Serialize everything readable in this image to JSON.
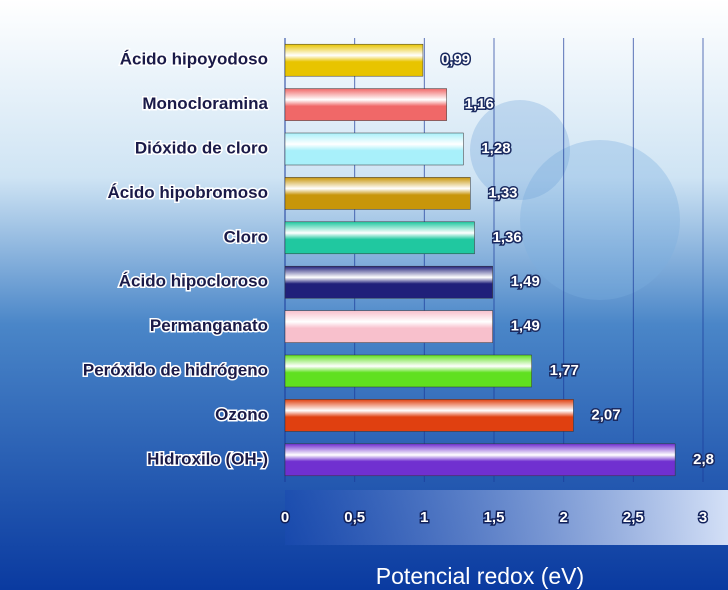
{
  "chart_data": {
    "type": "bar",
    "orientation": "horizontal",
    "categories": [
      "Ácido hipoyodoso",
      "Monocloramina",
      "Dióxido de cloro",
      "Ácido hipobromoso",
      "Cloro",
      "Ácido hipocloroso",
      "Permanganato",
      "Peróxido de hidrógeno",
      "Ozono",
      "Hidroxilo (OH-)"
    ],
    "values": [
      0.99,
      1.16,
      1.28,
      1.33,
      1.36,
      1.49,
      1.49,
      1.77,
      2.07,
      2.8
    ],
    "value_labels": [
      "0,99",
      "1,16",
      "1,28",
      "1,33",
      "1,36",
      "1,49",
      "1,49",
      "1,77",
      "2,07",
      "2,8"
    ],
    "colors": [
      "#e8c400",
      "#f06868",
      "#a8f0fa",
      "#c8960a",
      "#20c8a0",
      "#20207a",
      "#f8c0cc",
      "#60e020",
      "#e04010",
      "#7030d0"
    ],
    "xlabel": "Potencial redox (eV)",
    "xlim": [
      0,
      3
    ],
    "xticks": [
      0,
      {
        "value": 0.5,
        "label": "0,5"
      },
      1,
      {
        "value": 1.5,
        "label": "1,5"
      },
      2,
      {
        "value": 2.5,
        "label": "2,5"
      },
      3
    ],
    "grid": true
  }
}
